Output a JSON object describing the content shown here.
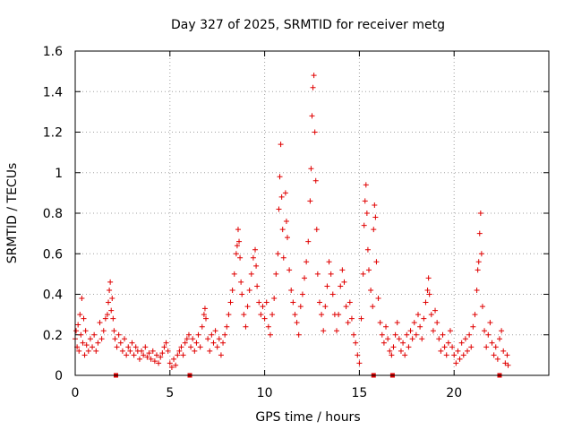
{
  "chart_data": {
    "type": "scatter",
    "title": "Day 327 of 2025, SRMTID for receiver metg",
    "xlabel": "GPS time / hours",
    "ylabel": "SRMTID / TECUs",
    "xlim": [
      0,
      25
    ],
    "ylim": [
      0,
      1.6
    ],
    "xticks": [
      0,
      5,
      10,
      15,
      20
    ],
    "yticks": [
      0,
      0.2,
      0.4,
      0.6,
      0.8,
      1,
      1.2,
      1.4,
      1.6
    ],
    "xtick_labels": [
      "0",
      "5",
      "10",
      "15",
      "20"
    ],
    "ytick_labels": [
      "0",
      "0.2",
      "0.4",
      "0.6",
      "0.8",
      "1",
      "1.2",
      "1.4",
      "1.6"
    ],
    "grid": true,
    "marker": "+",
    "color": "#e00000",
    "gap_markers_x": [
      2.15,
      6.05,
      15.75,
      16.75,
      22.4
    ],
    "series": [
      {
        "name": "metg",
        "points": [
          [
            0.0,
            0.18
          ],
          [
            0.05,
            0.22
          ],
          [
            0.1,
            0.14
          ],
          [
            0.15,
            0.25
          ],
          [
            0.2,
            0.12
          ],
          [
            0.25,
            0.3
          ],
          [
            0.3,
            0.2
          ],
          [
            0.35,
            0.38
          ],
          [
            0.4,
            0.16
          ],
          [
            0.45,
            0.28
          ],
          [
            0.5,
            0.1
          ],
          [
            0.55,
            0.22
          ],
          [
            0.6,
            0.15
          ],
          [
            0.7,
            0.12
          ],
          [
            0.8,
            0.18
          ],
          [
            0.9,
            0.14
          ],
          [
            1.0,
            0.2
          ],
          [
            1.1,
            0.12
          ],
          [
            1.2,
            0.16
          ],
          [
            1.3,
            0.26
          ],
          [
            1.4,
            0.18
          ],
          [
            1.5,
            0.22
          ],
          [
            1.6,
            0.28
          ],
          [
            1.7,
            0.3
          ],
          [
            1.75,
            0.36
          ],
          [
            1.8,
            0.42
          ],
          [
            1.85,
            0.46
          ],
          [
            1.9,
            0.32
          ],
          [
            1.95,
            0.38
          ],
          [
            2.0,
            0.28
          ],
          [
            2.05,
            0.22
          ],
          [
            2.1,
            0.18
          ],
          [
            2.2,
            0.14
          ],
          [
            2.3,
            0.2
          ],
          [
            2.4,
            0.16
          ],
          [
            2.5,
            0.12
          ],
          [
            2.6,
            0.18
          ],
          [
            2.7,
            0.1
          ],
          [
            2.8,
            0.14
          ],
          [
            2.9,
            0.12
          ],
          [
            3.0,
            0.16
          ],
          [
            3.1,
            0.1
          ],
          [
            3.2,
            0.14
          ],
          [
            3.3,
            0.12
          ],
          [
            3.4,
            0.08
          ],
          [
            3.5,
            0.12
          ],
          [
            3.6,
            0.1
          ],
          [
            3.7,
            0.14
          ],
          [
            3.8,
            0.09
          ],
          [
            3.9,
            0.11
          ],
          [
            4.0,
            0.08
          ],
          [
            4.1,
            0.12
          ],
          [
            4.2,
            0.07
          ],
          [
            4.3,
            0.1
          ],
          [
            4.4,
            0.06
          ],
          [
            4.5,
            0.09
          ],
          [
            4.6,
            0.11
          ],
          [
            4.7,
            0.14
          ],
          [
            4.8,
            0.16
          ],
          [
            4.9,
            0.12
          ],
          [
            5.0,
            0.06
          ],
          [
            5.1,
            0.04
          ],
          [
            5.2,
            0.08
          ],
          [
            5.3,
            0.05
          ],
          [
            5.4,
            0.1
          ],
          [
            5.5,
            0.12
          ],
          [
            5.6,
            0.14
          ],
          [
            5.7,
            0.1
          ],
          [
            5.8,
            0.16
          ],
          [
            5.9,
            0.18
          ],
          [
            6.0,
            0.2
          ],
          [
            6.1,
            0.14
          ],
          [
            6.2,
            0.18
          ],
          [
            6.3,
            0.12
          ],
          [
            6.4,
            0.16
          ],
          [
            6.5,
            0.2
          ],
          [
            6.6,
            0.14
          ],
          [
            6.7,
            0.24
          ],
          [
            6.8,
            0.3
          ],
          [
            6.85,
            0.33
          ],
          [
            6.9,
            0.28
          ],
          [
            7.0,
            0.18
          ],
          [
            7.1,
            0.12
          ],
          [
            7.2,
            0.2
          ],
          [
            7.3,
            0.16
          ],
          [
            7.4,
            0.22
          ],
          [
            7.5,
            0.14
          ],
          [
            7.6,
            0.18
          ],
          [
            7.7,
            0.1
          ],
          [
            7.8,
            0.16
          ],
          [
            7.9,
            0.2
          ],
          [
            8.0,
            0.24
          ],
          [
            8.1,
            0.3
          ],
          [
            8.2,
            0.36
          ],
          [
            8.3,
            0.42
          ],
          [
            8.4,
            0.5
          ],
          [
            8.5,
            0.6
          ],
          [
            8.55,
            0.64
          ],
          [
            8.6,
            0.72
          ],
          [
            8.65,
            0.66
          ],
          [
            8.7,
            0.58
          ],
          [
            8.75,
            0.46
          ],
          [
            8.8,
            0.4
          ],
          [
            8.9,
            0.3
          ],
          [
            9.0,
            0.24
          ],
          [
            9.1,
            0.34
          ],
          [
            9.2,
            0.42
          ],
          [
            9.3,
            0.5
          ],
          [
            9.4,
            0.58
          ],
          [
            9.5,
            0.62
          ],
          [
            9.55,
            0.54
          ],
          [
            9.6,
            0.44
          ],
          [
            9.7,
            0.36
          ],
          [
            9.8,
            0.3
          ],
          [
            9.9,
            0.34
          ],
          [
            10.0,
            0.28
          ],
          [
            10.1,
            0.36
          ],
          [
            10.2,
            0.24
          ],
          [
            10.3,
            0.2
          ],
          [
            10.4,
            0.3
          ],
          [
            10.5,
            0.38
          ],
          [
            10.6,
            0.5
          ],
          [
            10.7,
            0.6
          ],
          [
            10.75,
            0.82
          ],
          [
            10.8,
            0.98
          ],
          [
            10.85,
            1.14
          ],
          [
            10.9,
            0.88
          ],
          [
            10.95,
            0.72
          ],
          [
            11.0,
            0.58
          ],
          [
            11.1,
            0.9
          ],
          [
            11.15,
            0.76
          ],
          [
            11.2,
            0.68
          ],
          [
            11.3,
            0.52
          ],
          [
            11.4,
            0.42
          ],
          [
            11.5,
            0.36
          ],
          [
            11.6,
            0.3
          ],
          [
            11.7,
            0.26
          ],
          [
            11.8,
            0.2
          ],
          [
            11.9,
            0.34
          ],
          [
            12.0,
            0.4
          ],
          [
            12.1,
            0.48
          ],
          [
            12.2,
            0.56
          ],
          [
            12.3,
            0.66
          ],
          [
            12.4,
            0.86
          ],
          [
            12.45,
            1.02
          ],
          [
            12.5,
            1.28
          ],
          [
            12.55,
            1.42
          ],
          [
            12.6,
            1.48
          ],
          [
            12.65,
            1.2
          ],
          [
            12.7,
            0.96
          ],
          [
            12.75,
            0.72
          ],
          [
            12.8,
            0.5
          ],
          [
            12.9,
            0.36
          ],
          [
            13.0,
            0.3
          ],
          [
            13.1,
            0.22
          ],
          [
            13.2,
            0.34
          ],
          [
            13.3,
            0.44
          ],
          [
            13.4,
            0.56
          ],
          [
            13.5,
            0.5
          ],
          [
            13.6,
            0.4
          ],
          [
            13.7,
            0.3
          ],
          [
            13.8,
            0.22
          ],
          [
            13.9,
            0.3
          ],
          [
            14.0,
            0.44
          ],
          [
            14.1,
            0.52
          ],
          [
            14.2,
            0.46
          ],
          [
            14.3,
            0.34
          ],
          [
            14.4,
            0.26
          ],
          [
            14.5,
            0.36
          ],
          [
            14.6,
            0.28
          ],
          [
            14.7,
            0.2
          ],
          [
            14.8,
            0.16
          ],
          [
            14.9,
            0.1
          ],
          [
            15.0,
            0.06
          ],
          [
            15.1,
            0.28
          ],
          [
            15.2,
            0.5
          ],
          [
            15.25,
            0.74
          ],
          [
            15.3,
            0.86
          ],
          [
            15.35,
            0.94
          ],
          [
            15.4,
            0.8
          ],
          [
            15.45,
            0.62
          ],
          [
            15.5,
            0.52
          ],
          [
            15.6,
            0.42
          ],
          [
            15.7,
            0.34
          ],
          [
            15.75,
            0.72
          ],
          [
            15.8,
            0.84
          ],
          [
            15.85,
            0.78
          ],
          [
            15.9,
            0.56
          ],
          [
            16.0,
            0.38
          ],
          [
            16.1,
            0.26
          ],
          [
            16.2,
            0.2
          ],
          [
            16.3,
            0.16
          ],
          [
            16.4,
            0.24
          ],
          [
            16.5,
            0.18
          ],
          [
            16.6,
            0.12
          ],
          [
            16.7,
            0.1
          ],
          [
            16.8,
            0.14
          ],
          [
            16.9,
            0.2
          ],
          [
            17.0,
            0.26
          ],
          [
            17.1,
            0.18
          ],
          [
            17.2,
            0.12
          ],
          [
            17.3,
            0.16
          ],
          [
            17.4,
            0.1
          ],
          [
            17.5,
            0.2
          ],
          [
            17.6,
            0.14
          ],
          [
            17.7,
            0.22
          ],
          [
            17.8,
            0.18
          ],
          [
            17.9,
            0.26
          ],
          [
            18.0,
            0.2
          ],
          [
            18.1,
            0.3
          ],
          [
            18.2,
            0.24
          ],
          [
            18.3,
            0.18
          ],
          [
            18.4,
            0.28
          ],
          [
            18.5,
            0.36
          ],
          [
            18.6,
            0.42
          ],
          [
            18.65,
            0.48
          ],
          [
            18.7,
            0.4
          ],
          [
            18.8,
            0.3
          ],
          [
            18.9,
            0.22
          ],
          [
            19.0,
            0.32
          ],
          [
            19.1,
            0.26
          ],
          [
            19.2,
            0.18
          ],
          [
            19.3,
            0.12
          ],
          [
            19.4,
            0.2
          ],
          [
            19.5,
            0.14
          ],
          [
            19.6,
            0.1
          ],
          [
            19.7,
            0.16
          ],
          [
            19.8,
            0.22
          ],
          [
            19.9,
            0.14
          ],
          [
            20.0,
            0.1
          ],
          [
            20.1,
            0.06
          ],
          [
            20.2,
            0.12
          ],
          [
            20.3,
            0.08
          ],
          [
            20.4,
            0.16
          ],
          [
            20.5,
            0.1
          ],
          [
            20.6,
            0.18
          ],
          [
            20.7,
            0.12
          ],
          [
            20.8,
            0.2
          ],
          [
            20.9,
            0.14
          ],
          [
            21.0,
            0.24
          ],
          [
            21.1,
            0.3
          ],
          [
            21.2,
            0.42
          ],
          [
            21.25,
            0.52
          ],
          [
            21.3,
            0.56
          ],
          [
            21.35,
            0.7
          ],
          [
            21.4,
            0.8
          ],
          [
            21.45,
            0.6
          ],
          [
            21.5,
            0.34
          ],
          [
            21.6,
            0.22
          ],
          [
            21.7,
            0.14
          ],
          [
            21.8,
            0.2
          ],
          [
            21.9,
            0.26
          ],
          [
            22.0,
            0.16
          ],
          [
            22.1,
            0.1
          ],
          [
            22.2,
            0.14
          ],
          [
            22.3,
            0.08
          ],
          [
            22.4,
            0.18
          ],
          [
            22.5,
            0.22
          ],
          [
            22.6,
            0.12
          ],
          [
            22.7,
            0.06
          ],
          [
            22.8,
            0.1
          ],
          [
            22.85,
            0.05
          ]
        ]
      }
    ]
  }
}
